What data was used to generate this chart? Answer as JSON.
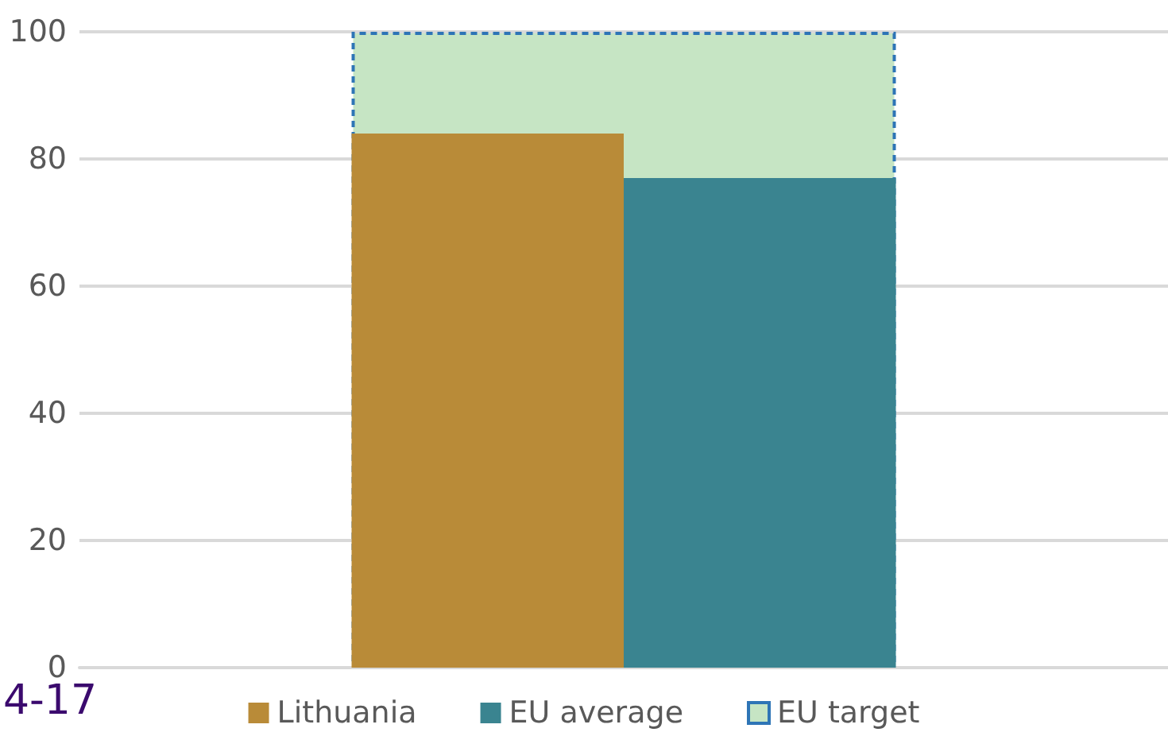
{
  "chart_data": {
    "type": "bar",
    "categories": [
      null
    ],
    "series": [
      {
        "name": "EU target",
        "color": "#c6e5c4",
        "values": [
          100
        ],
        "line_style": "dashed"
      },
      {
        "name": "Lithuania",
        "color": "#b98b38",
        "values": [
          84
        ]
      },
      {
        "name": "EU average",
        "color": "#3a8490",
        "values": [
          77
        ]
      }
    ],
    "ylim": [
      0,
      100
    ],
    "yticks": [
      0,
      20,
      40,
      60,
      80,
      100
    ],
    "grid": "y",
    "legend": "bottom",
    "annotations": [
      "4-17"
    ]
  }
}
